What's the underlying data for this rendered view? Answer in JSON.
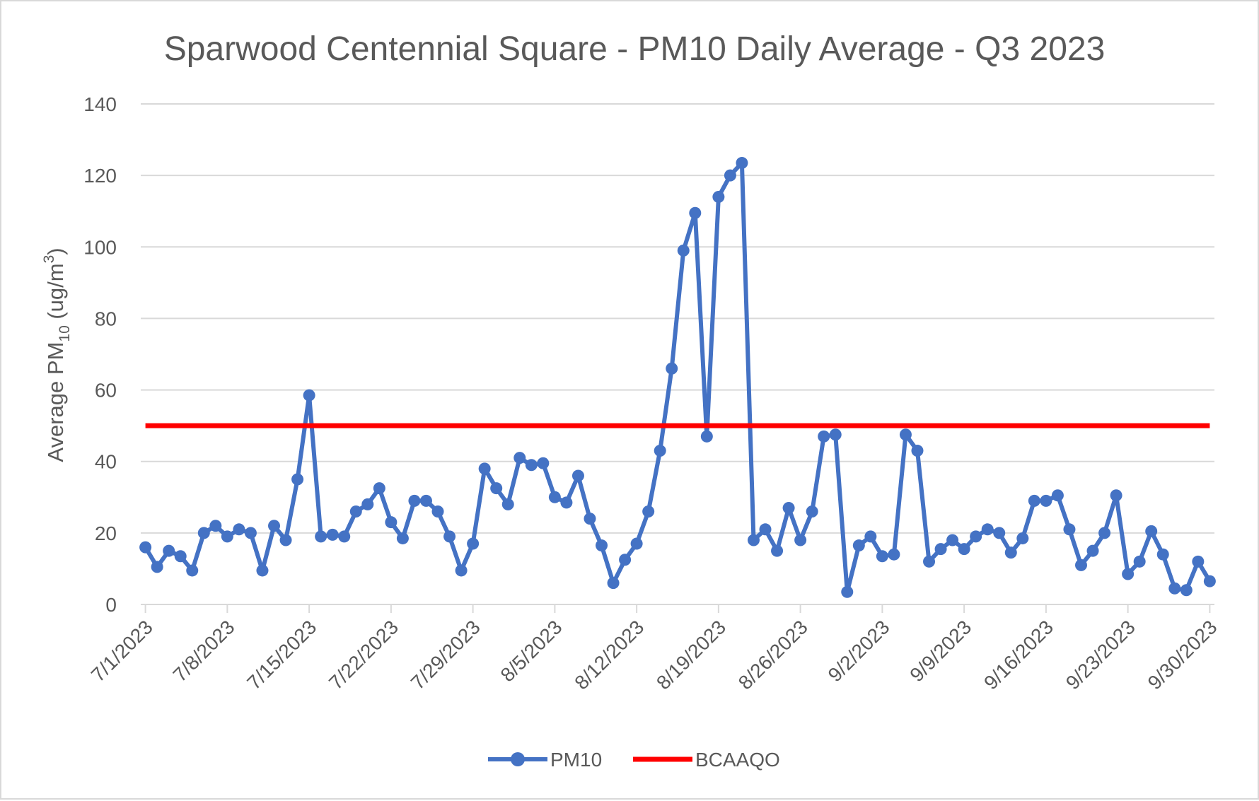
{
  "chart_data": {
    "type": "line",
    "title": "Sparwood Centennial Square - PM10 Daily Average - Q3 2023",
    "ylabel": {
      "prefix": "Average PM",
      "sub": "10",
      "middle": " (ug/m",
      "sup": "3",
      "suffix": ")"
    },
    "xlabel": "",
    "ylim": [
      0,
      140
    ],
    "yticks": [
      0,
      20,
      40,
      60,
      80,
      100,
      120,
      140
    ],
    "xlim": [
      "2023-07-01",
      "2023-09-30"
    ],
    "xtick_labels": [
      "7/1/2023",
      "7/8/2023",
      "7/15/2023",
      "7/22/2023",
      "7/29/2023",
      "8/5/2023",
      "8/12/2023",
      "8/19/2023",
      "8/26/2023",
      "9/2/2023",
      "9/9/2023",
      "9/16/2023",
      "9/23/2023",
      "9/30/2023"
    ],
    "grid": "horizontal",
    "legend_position": "bottom",
    "series": [
      {
        "name": "PM10",
        "color": "#4472C4",
        "marker": "circle",
        "x": [
          "2023-07-01",
          "2023-07-02",
          "2023-07-03",
          "2023-07-04",
          "2023-07-05",
          "2023-07-06",
          "2023-07-07",
          "2023-07-08",
          "2023-07-09",
          "2023-07-10",
          "2023-07-11",
          "2023-07-12",
          "2023-07-13",
          "2023-07-14",
          "2023-07-15",
          "2023-07-16",
          "2023-07-17",
          "2023-07-18",
          "2023-07-19",
          "2023-07-20",
          "2023-07-21",
          "2023-07-22",
          "2023-07-23",
          "2023-07-24",
          "2023-07-25",
          "2023-07-26",
          "2023-07-27",
          "2023-07-28",
          "2023-07-29",
          "2023-07-30",
          "2023-07-31",
          "2023-08-01",
          "2023-08-02",
          "2023-08-03",
          "2023-08-04",
          "2023-08-05",
          "2023-08-06",
          "2023-08-07",
          "2023-08-08",
          "2023-08-09",
          "2023-08-10",
          "2023-08-11",
          "2023-08-12",
          "2023-08-13",
          "2023-08-14",
          "2023-08-15",
          "2023-08-16",
          "2023-08-17",
          "2023-08-18",
          "2023-08-19",
          "2023-08-20",
          "2023-08-21",
          "2023-08-22",
          "2023-08-23",
          "2023-08-24",
          "2023-08-25",
          "2023-08-26",
          "2023-08-27",
          "2023-08-28",
          "2023-08-29",
          "2023-08-30",
          "2023-08-31",
          "2023-09-01",
          "2023-09-02",
          "2023-09-03",
          "2023-09-04",
          "2023-09-05",
          "2023-09-06",
          "2023-09-07",
          "2023-09-08",
          "2023-09-09",
          "2023-09-10",
          "2023-09-11",
          "2023-09-12",
          "2023-09-13",
          "2023-09-14",
          "2023-09-15",
          "2023-09-16",
          "2023-09-17",
          "2023-09-18",
          "2023-09-19",
          "2023-09-20",
          "2023-09-21",
          "2023-09-22",
          "2023-09-23",
          "2023-09-24",
          "2023-09-25",
          "2023-09-26",
          "2023-09-27",
          "2023-09-28",
          "2023-09-29",
          "2023-09-30"
        ],
        "values": [
          16,
          10.5,
          15,
          13.5,
          9.5,
          20,
          22,
          19,
          21,
          20,
          9.5,
          22,
          18,
          35,
          58.5,
          19,
          19.5,
          19,
          26,
          28,
          32.5,
          23,
          18.5,
          29,
          29,
          26,
          19,
          9.5,
          17,
          38,
          32.5,
          28,
          41,
          39,
          39.5,
          30,
          28.5,
          36,
          24,
          16.5,
          6,
          12.5,
          17,
          26,
          43,
          66,
          99,
          109.5,
          47,
          114,
          120,
          123.5,
          18,
          21,
          15,
          27,
          18,
          26,
          47,
          47.5,
          3.5,
          16.5,
          19,
          13.5,
          14,
          47.5,
          43,
          12,
          15.5,
          18,
          15.5,
          19,
          21,
          20,
          14.5,
          18.5,
          29,
          29,
          30.5,
          21,
          11,
          15,
          20,
          30.5,
          8.5,
          12,
          20.5,
          14,
          4.5,
          4,
          12,
          6.5
        ]
      },
      {
        "name": "BCAAQO",
        "color": "#FF0000",
        "x": [
          "2023-07-01",
          "2023-09-30"
        ],
        "values": [
          50,
          50
        ]
      }
    ]
  }
}
